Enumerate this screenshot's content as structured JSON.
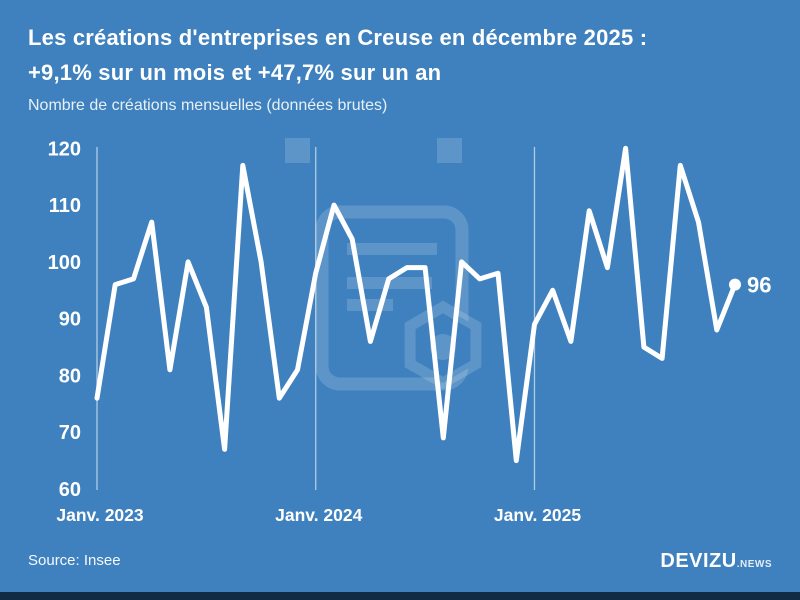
{
  "header": {
    "title_line1": "Les créations d'entreprises en Creuse en décembre 2025 :",
    "title_line2": "+9,1% sur un mois et +47,7% sur un an",
    "subtitle": "Nombre de créations mensuelles (données brutes)"
  },
  "chart_data": {
    "type": "line",
    "title": "Nombre de créations mensuelles (données brutes)",
    "x_start": "Janv. 2023",
    "x_end": "Déc. 2025",
    "x_tick_labels": [
      "Janv. 2023",
      "Janv. 2024",
      "Janv. 2025"
    ],
    "x_tick_month_indices": [
      0,
      12,
      24
    ],
    "y_ticks": [
      60,
      70,
      80,
      90,
      100,
      110,
      120
    ],
    "ylim": [
      60,
      120
    ],
    "grid": "vertical-only",
    "legend_position": "none",
    "line_color": "#ffffff",
    "series": [
      {
        "name": "Créations d'entreprises en Creuse",
        "months": [
          "2023-01",
          "2023-02",
          "2023-03",
          "2023-04",
          "2023-05",
          "2023-06",
          "2023-07",
          "2023-08",
          "2023-09",
          "2023-10",
          "2023-11",
          "2023-12",
          "2024-01",
          "2024-02",
          "2024-03",
          "2024-04",
          "2024-05",
          "2024-06",
          "2024-07",
          "2024-08",
          "2024-09",
          "2024-10",
          "2024-11",
          "2024-12",
          "2025-01",
          "2025-02",
          "2025-03",
          "2025-04",
          "2025-05",
          "2025-06",
          "2025-07",
          "2025-08",
          "2025-09",
          "2025-10",
          "2025-11",
          "2025-12"
        ],
        "values": [
          76,
          96,
          97,
          107,
          81,
          100,
          92,
          67,
          117,
          100,
          76,
          81,
          98,
          110,
          104,
          86,
          97,
          99,
          99,
          69,
          100,
          97,
          98,
          65,
          89,
          95,
          86,
          109,
          99,
          120,
          85,
          83,
          117,
          107,
          88,
          96
        ]
      }
    ],
    "end_point_label": "96"
  },
  "footer": {
    "source": "Source: Insee",
    "brand": "DEVIZU",
    "brand_suffix": ".NEWS"
  },
  "colors": {
    "background": "#3e81be",
    "line": "#ffffff",
    "text": "#ffffff",
    "gridline": "rgba(255,255,255,0.6)",
    "watermark": "rgba(255,255,255,0.16)",
    "bottom_strip": "#112b45"
  }
}
